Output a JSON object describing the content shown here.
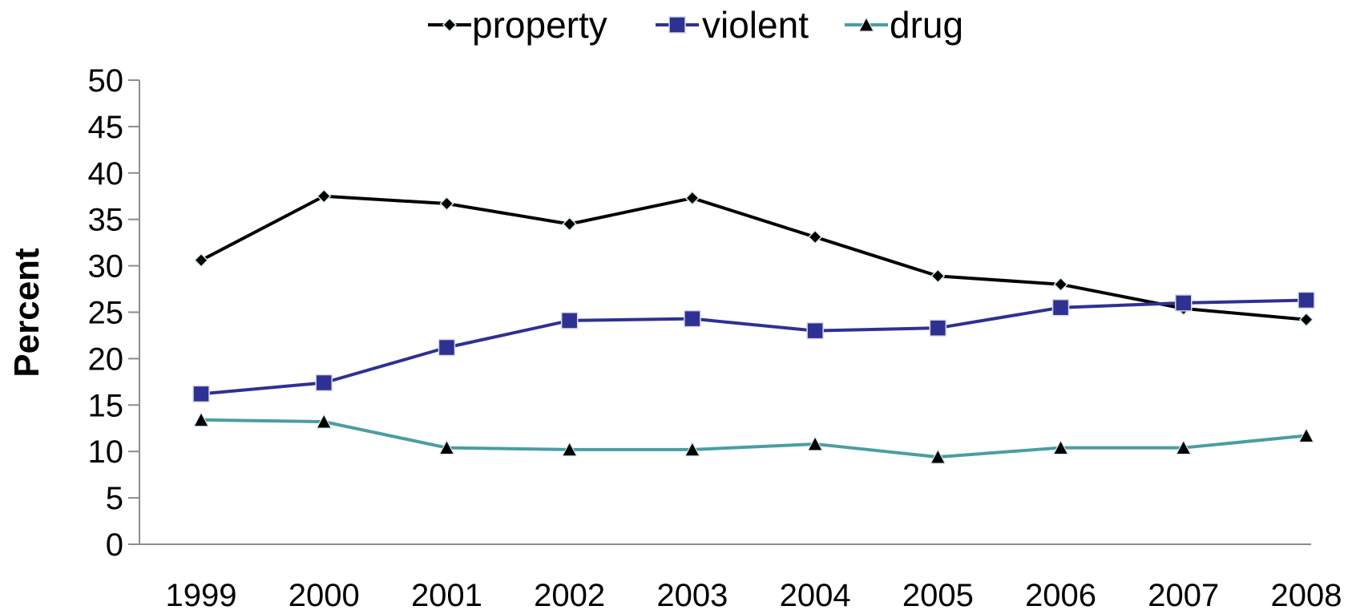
{
  "chart_data": {
    "type": "line",
    "title": "",
    "xlabel": "",
    "ylabel": "Percent",
    "categories": [
      "1999",
      "2000",
      "2001",
      "2002",
      "2003",
      "2004",
      "2005",
      "2006",
      "2007",
      "2008"
    ],
    "ylim": [
      0,
      50
    ],
    "yticks": [
      "0",
      "5",
      "10",
      "15",
      "20",
      "25",
      "30",
      "35",
      "40",
      "45",
      "50"
    ],
    "grid": false,
    "legend_position": "top",
    "series": [
      {
        "name": "property",
        "color": "#000000",
        "marker": "diamond",
        "values": [
          30.6,
          37.5,
          36.7,
          34.5,
          37.3,
          33.1,
          28.9,
          28.0,
          25.4,
          24.2
        ]
      },
      {
        "name": "violent",
        "color": "#2e3192",
        "marker": "square",
        "values": [
          16.2,
          17.4,
          21.2,
          24.1,
          24.3,
          23.0,
          23.3,
          25.5,
          26.0,
          26.3
        ]
      },
      {
        "name": "drug",
        "color": "#4a9ea1",
        "marker": "triangle",
        "values": [
          13.4,
          13.2,
          10.4,
          10.2,
          10.2,
          10.8,
          9.4,
          10.4,
          10.4,
          11.7
        ]
      }
    ]
  }
}
